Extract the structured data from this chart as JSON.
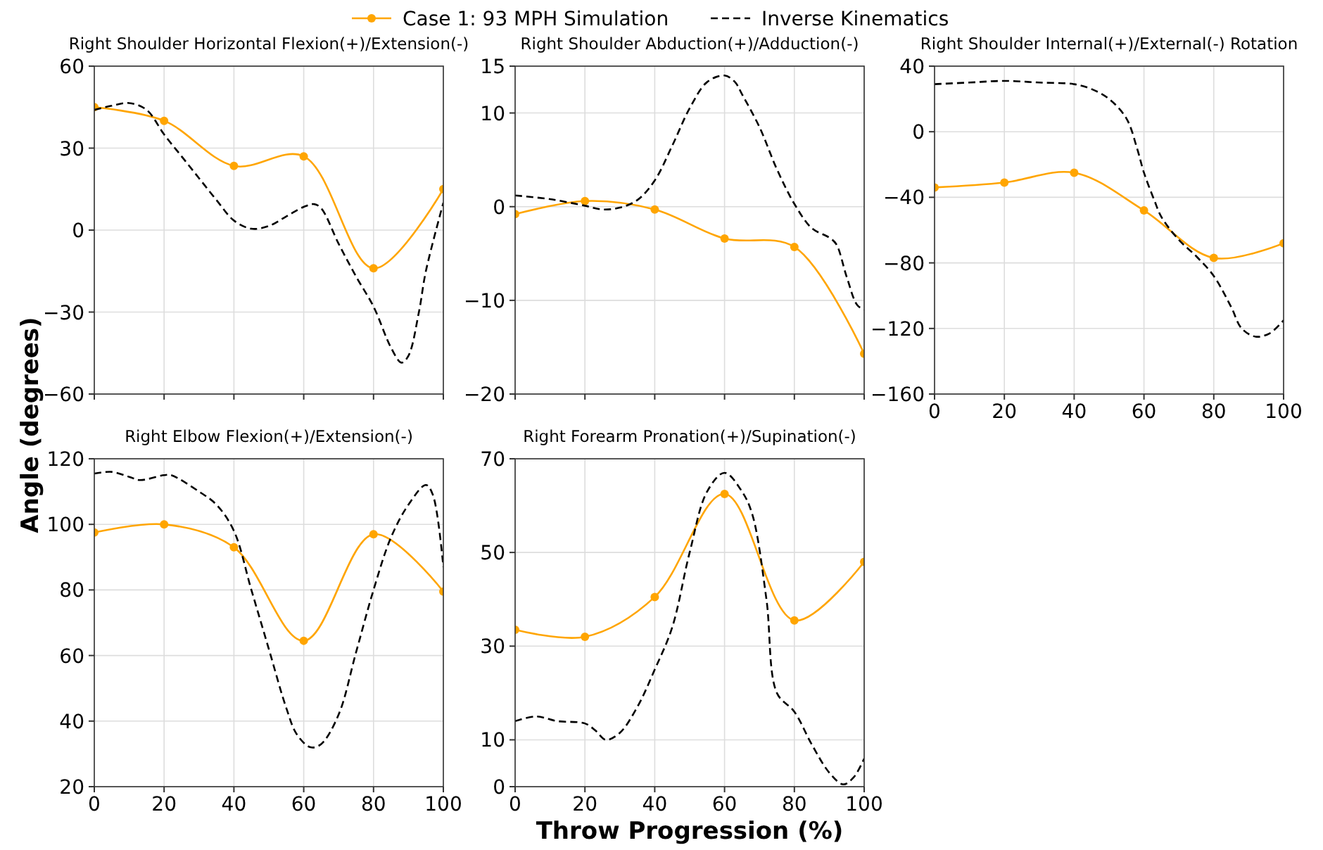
{
  "chart_data": [
    {
      "type": "line",
      "title": "Right Shoulder Horizontal Flexion(+)/Extension(-)",
      "ylabel": "Angle (degrees)",
      "legend": "top",
      "grid": true,
      "tick_labels": "y",
      "xlim": [
        0,
        100
      ],
      "xticks": [
        0,
        20,
        40,
        60,
        80,
        100
      ],
      "ylim": [
        -60,
        60
      ],
      "yticks": [
        -60,
        -30,
        0,
        30,
        60
      ],
      "series": [
        {
          "name": "Case 1: 93 MPH Simulation",
          "color": "#ffa500",
          "marker": "circle",
          "line_style": "solid",
          "x": [
            0,
            20,
            40,
            60,
            80,
            100
          ],
          "values": [
            45,
            40,
            23.5,
            27,
            -14,
            15
          ]
        },
        {
          "name": "Inverse Kinematics",
          "color": "#000000",
          "marker": "none",
          "line_style": "dashed",
          "x": [
            0,
            5,
            10,
            15,
            20,
            25,
            30,
            35,
            40,
            45,
            50,
            55,
            60,
            63,
            65,
            70,
            75,
            80,
            85,
            88,
            90,
            93,
            95,
            100
          ],
          "values": [
            44,
            45.5,
            46.5,
            44,
            35,
            27,
            19,
            11,
            3.5,
            0.5,
            1.5,
            5,
            8.5,
            9.5,
            8,
            -5,
            -17,
            -28,
            -43,
            -48.5,
            -46,
            -30,
            -15,
            10
          ]
        }
      ]
    },
    {
      "type": "line",
      "title": "Right Shoulder Abduction(+)/Adduction(-)",
      "grid": true,
      "tick_labels": "y",
      "xlim": [
        0,
        100
      ],
      "xticks": [
        0,
        20,
        40,
        60,
        80,
        100
      ],
      "ylim": [
        -20,
        15
      ],
      "yticks": [
        -20,
        -10,
        0,
        10,
        15
      ],
      "series": [
        {
          "color": "#ffa500",
          "marker": "circle",
          "line_style": "solid",
          "x": [
            0,
            20,
            40,
            60,
            80,
            100
          ],
          "values": [
            -0.8,
            0.6,
            -0.3,
            -3.4,
            -4.3,
            -15.7
          ]
        },
        {
          "color": "#000000",
          "marker": "none",
          "line_style": "dashed",
          "x": [
            0,
            10,
            20,
            25,
            30,
            35,
            40,
            45,
            50,
            55,
            60,
            63,
            65,
            70,
            75,
            80,
            85,
            90,
            92,
            95,
            98,
            100
          ],
          "values": [
            1.2,
            0.8,
            0.1,
            -0.3,
            -0.1,
            0.7,
            2.8,
            6.5,
            10.5,
            13.3,
            14,
            13.3,
            12,
            8.5,
            4,
            0.3,
            -2.3,
            -3.3,
            -4,
            -7.5,
            -10.5,
            -11
          ]
        }
      ]
    },
    {
      "type": "line",
      "title": "Right Shoulder Internal(+)/External(-) Rotation",
      "grid": true,
      "xlim": [
        0,
        100
      ],
      "xticks": [
        0,
        20,
        40,
        60,
        80,
        100
      ],
      "ylim": [
        -160,
        40
      ],
      "yticks": [
        -160,
        -120,
        -80,
        -40,
        0,
        40
      ],
      "series": [
        {
          "color": "#ffa500",
          "marker": "circle",
          "line_style": "solid",
          "x": [
            0,
            20,
            40,
            60,
            80,
            100
          ],
          "values": [
            -34,
            -31,
            -25,
            -48,
            -77,
            -68
          ]
        },
        {
          "color": "#000000",
          "marker": "none",
          "line_style": "dashed",
          "x": [
            0,
            10,
            20,
            30,
            40,
            45,
            50,
            55,
            58,
            60,
            63,
            65,
            70,
            75,
            80,
            85,
            88,
            92,
            96,
            100
          ],
          "values": [
            29,
            30,
            31,
            30,
            29,
            26,
            20,
            8,
            -10,
            -25,
            -42,
            -52,
            -66,
            -76,
            -88,
            -107,
            -120,
            -125,
            -123,
            -115
          ]
        }
      ]
    },
    {
      "type": "line",
      "title": "Right Elbow Flexion(+)/Extension(-)",
      "grid": true,
      "xlim": [
        0,
        100
      ],
      "xticks": [
        0,
        20,
        40,
        60,
        80,
        100
      ],
      "ylim": [
        20,
        120
      ],
      "yticks": [
        20,
        40,
        60,
        80,
        100,
        120
      ],
      "series": [
        {
          "color": "#ffa500",
          "marker": "circle",
          "line_style": "solid",
          "x": [
            0,
            20,
            40,
            60,
            80,
            100
          ],
          "values": [
            97.5,
            100,
            93,
            64.5,
            97,
            79.5
          ]
        },
        {
          "color": "#000000",
          "marker": "none",
          "line_style": "dashed",
          "x": [
            0,
            5,
            10,
            13,
            20,
            22,
            30,
            35,
            40,
            45,
            50,
            55,
            58,
            62,
            65,
            70,
            75,
            80,
            85,
            90,
            95,
            97,
            100
          ],
          "values": [
            115.5,
            116,
            114.5,
            113.5,
            115,
            115,
            110,
            106,
            98,
            80,
            62,
            44,
            36,
            32,
            33,
            42,
            61,
            80,
            96,
            106,
            112,
            109,
            87
          ]
        }
      ]
    },
    {
      "type": "line",
      "title": "Right Forearm Pronation(+)/Supination(-)",
      "xlabel": "Throw Progression (%)",
      "grid": true,
      "xlim": [
        0,
        100
      ],
      "xticks": [
        0,
        20,
        40,
        60,
        80,
        100
      ],
      "ylim": [
        0,
        70
      ],
      "yticks": [
        0,
        10,
        30,
        50,
        70
      ],
      "series": [
        {
          "color": "#ffa500",
          "marker": "circle",
          "line_style": "solid",
          "x": [
            0,
            20,
            40,
            60,
            80,
            100
          ],
          "values": [
            33.5,
            32,
            40.5,
            62.5,
            35.5,
            48
          ]
        },
        {
          "color": "#000000",
          "marker": "none",
          "line_style": "dashed",
          "x": [
            0,
            6,
            12,
            20,
            23,
            26,
            30,
            35,
            40,
            45,
            50,
            55,
            60,
            65,
            68,
            72,
            75,
            80,
            85,
            90,
            94,
            97,
            100
          ],
          "values": [
            14,
            15,
            14,
            13.5,
            12,
            10,
            11.5,
            17,
            25,
            34,
            50,
            63,
            67,
            63,
            58,
            40,
            20,
            16,
            9,
            3,
            0.5,
            2,
            6
          ]
        }
      ]
    }
  ]
}
